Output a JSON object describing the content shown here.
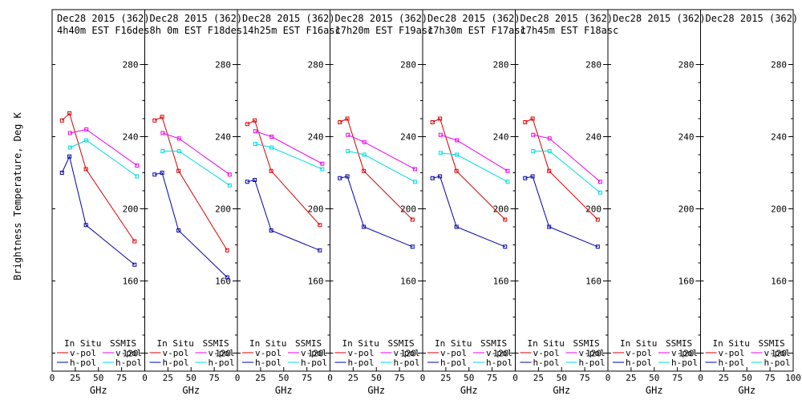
{
  "figure": {
    "ylabel": "Brightness Temperature, Deg K",
    "xlabel": "GHz",
    "legend": {
      "in_situ": "In Situ",
      "ssmis": "SSMIS",
      "vpol": "v-pol",
      "hpol": "h-pol"
    },
    "colors": {
      "insitu_v": "#dd0000",
      "insitu_h": "#0000aa",
      "ssmis_v": "#ee00ee",
      "ssmis_h": "#00dddd"
    }
  },
  "chart_data": [
    {
      "type": "line",
      "title": "Dec28 2015 (362)",
      "subtitle": "4h40m EST F16des",
      "ylim": [
        110,
        290
      ],
      "xlim": [
        0,
        100
      ],
      "yticks": [
        120,
        160,
        200,
        240,
        280
      ],
      "xticks": [
        0,
        25,
        50,
        75,
        100
      ],
      "series": [
        {
          "name": "In Situ v-pol",
          "x": [
            10.65,
            18.7,
            36.5,
            89
          ],
          "y": [
            249,
            253,
            222,
            182
          ]
        },
        {
          "name": "In Situ h-pol",
          "x": [
            10.65,
            18.7,
            36.5,
            89
          ],
          "y": [
            220,
            229,
            191,
            169
          ]
        },
        {
          "name": "SSMIS v-pol",
          "x": [
            19.35,
            37,
            91.655
          ],
          "y": [
            242,
            244,
            224
          ]
        },
        {
          "name": "SSMIS h-pol",
          "x": [
            19.35,
            37,
            91.655
          ],
          "y": [
            234,
            238,
            218
          ]
        }
      ]
    },
    {
      "type": "line",
      "title": "Dec28 2015 (362)",
      "subtitle": "8h 0m EST F18des",
      "ylim": [
        110,
        290
      ],
      "xlim": [
        0,
        100
      ],
      "yticks": [
        120,
        160,
        200,
        240,
        280
      ],
      "xticks": [
        0,
        25,
        50,
        75,
        100
      ],
      "series": [
        {
          "name": "In Situ v-pol",
          "x": [
            10.65,
            18.7,
            36.5,
            89
          ],
          "y": [
            249,
            251,
            221,
            177
          ]
        },
        {
          "name": "In Situ h-pol",
          "x": [
            10.65,
            18.7,
            36.5,
            89
          ],
          "y": [
            219,
            220,
            188,
            162
          ]
        },
        {
          "name": "SSMIS v-pol",
          "x": [
            19.35,
            37,
            91.655
          ],
          "y": [
            242,
            239,
            219
          ]
        },
        {
          "name": "SSMIS h-pol",
          "x": [
            19.35,
            37,
            91.655
          ],
          "y": [
            232,
            232,
            213
          ]
        }
      ]
    },
    {
      "type": "line",
      "title": "Dec28 2015 (362)",
      "subtitle": "14h25m EST F16asc",
      "ylim": [
        110,
        290
      ],
      "xlim": [
        0,
        100
      ],
      "yticks": [
        120,
        160,
        200,
        240,
        280
      ],
      "xticks": [
        0,
        25,
        50,
        75,
        100
      ],
      "series": [
        {
          "name": "In Situ v-pol",
          "x": [
            10.65,
            18.7,
            36.5,
            89
          ],
          "y": [
            247,
            249,
            221,
            191
          ]
        },
        {
          "name": "In Situ h-pol",
          "x": [
            10.65,
            18.7,
            36.5,
            89
          ],
          "y": [
            215,
            216,
            188,
            177
          ]
        },
        {
          "name": "SSMIS v-pol",
          "x": [
            19.35,
            37,
            91.655
          ],
          "y": [
            243,
            240,
            225
          ]
        },
        {
          "name": "SSMIS h-pol",
          "x": [
            19.35,
            37,
            91.655
          ],
          "y": [
            236,
            234,
            222
          ]
        }
      ]
    },
    {
      "type": "line",
      "title": "Dec28 2015 (362)",
      "subtitle": "17h20m EST F19asc",
      "ylim": [
        110,
        290
      ],
      "xlim": [
        0,
        100
      ],
      "yticks": [
        120,
        160,
        200,
        240,
        280
      ],
      "xticks": [
        0,
        25,
        50,
        75,
        100
      ],
      "series": [
        {
          "name": "In Situ v-pol",
          "x": [
            10.65,
            18.7,
            36.5,
            89
          ],
          "y": [
            248,
            250,
            221,
            194
          ]
        },
        {
          "name": "In Situ h-pol",
          "x": [
            10.65,
            18.7,
            36.5,
            89
          ],
          "y": [
            217,
            218,
            190,
            179
          ]
        },
        {
          "name": "SSMIS v-pol",
          "x": [
            19.35,
            37,
            91.655
          ],
          "y": [
            241,
            237,
            222
          ]
        },
        {
          "name": "SSMIS h-pol",
          "x": [
            19.35,
            37,
            91.655
          ],
          "y": [
            232,
            230,
            215
          ]
        }
      ]
    },
    {
      "type": "line",
      "title": "Dec28 2015 (362)",
      "subtitle": "17h30m EST F17asc",
      "ylim": [
        110,
        290
      ],
      "xlim": [
        0,
        100
      ],
      "yticks": [
        120,
        160,
        200,
        240,
        280
      ],
      "xticks": [
        0,
        25,
        50,
        75,
        100
      ],
      "series": [
        {
          "name": "In Situ v-pol",
          "x": [
            10.65,
            18.7,
            36.5,
            89
          ],
          "y": [
            248,
            250,
            221,
            194
          ]
        },
        {
          "name": "In Situ h-pol",
          "x": [
            10.65,
            18.7,
            36.5,
            89
          ],
          "y": [
            217,
            218,
            190,
            179
          ]
        },
        {
          "name": "SSMIS v-pol",
          "x": [
            19.35,
            37,
            91.655
          ],
          "y": [
            241,
            238,
            221
          ]
        },
        {
          "name": "SSMIS h-pol",
          "x": [
            19.35,
            37,
            91.655
          ],
          "y": [
            231,
            230,
            215
          ]
        }
      ]
    },
    {
      "type": "line",
      "title": "Dec28 2015 (362)",
      "subtitle": "17h45m EST F18asc",
      "ylim": [
        110,
        290
      ],
      "xlim": [
        0,
        100
      ],
      "yticks": [
        120,
        160,
        200,
        240,
        280
      ],
      "xticks": [
        0,
        25,
        50,
        75,
        100
      ],
      "series": [
        {
          "name": "In Situ v-pol",
          "x": [
            10.65,
            18.7,
            36.5,
            89
          ],
          "y": [
            248,
            250,
            221,
            194
          ]
        },
        {
          "name": "In Situ h-pol",
          "x": [
            10.65,
            18.7,
            36.5,
            89
          ],
          "y": [
            217,
            218,
            190,
            179
          ]
        },
        {
          "name": "SSMIS v-pol",
          "x": [
            19.35,
            37,
            91.655
          ],
          "y": [
            241,
            239,
            215
          ]
        },
        {
          "name": "SSMIS h-pol",
          "x": [
            19.35,
            37,
            91.655
          ],
          "y": [
            232,
            232,
            209
          ]
        }
      ]
    },
    {
      "type": "line",
      "title": "Dec28 2015 (362)",
      "subtitle": "",
      "ylim": [
        110,
        290
      ],
      "xlim": [
        0,
        100
      ],
      "yticks": [
        120,
        160,
        200,
        240,
        280
      ],
      "xticks": [
        0,
        25,
        50,
        75,
        100
      ],
      "series": []
    },
    {
      "type": "line",
      "title": "Dec28 2015 (362)",
      "subtitle": "",
      "ylim": [
        110,
        290
      ],
      "xlim": [
        0,
        100
      ],
      "yticks": [
        120,
        160,
        200,
        240,
        280
      ],
      "xticks": [
        0,
        25,
        50,
        75,
        100
      ],
      "series": []
    }
  ]
}
